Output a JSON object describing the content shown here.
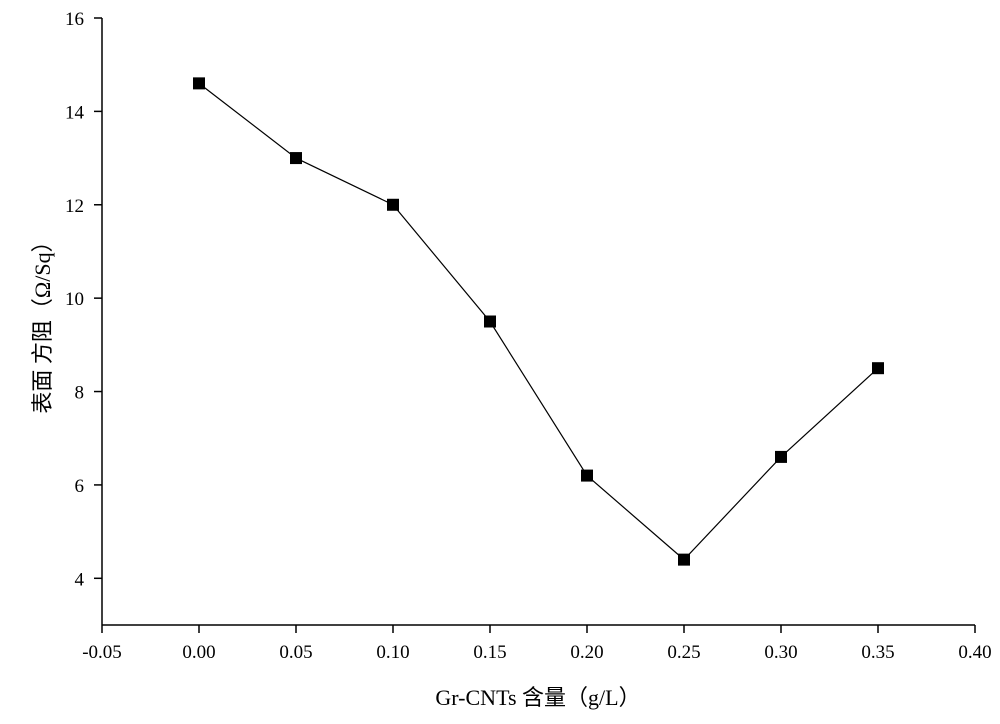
{
  "chart_data": {
    "type": "line",
    "title": "",
    "xlabel": "Gr-CNTs 含量（g/L）",
    "ylabel": "表面 方阻（Ω/Sq）",
    "xlim": [
      -0.05,
      0.4
    ],
    "ylim": [
      3,
      16
    ],
    "x_ticks": [
      "-0.05",
      "0.00",
      "0.05",
      "0.10",
      "0.15",
      "0.20",
      "0.25",
      "0.30",
      "0.35",
      "0.40"
    ],
    "y_ticks": [
      "4",
      "6",
      "8",
      "10",
      "12",
      "14",
      "16"
    ],
    "grid": false,
    "marker": "square",
    "series": [
      {
        "x": [
          0.0,
          0.05,
          0.1,
          0.15,
          0.2,
          0.25,
          0.3,
          0.35
        ],
        "y": [
          14.6,
          13.0,
          12.0,
          9.5,
          6.2,
          4.4,
          6.6,
          8.5
        ]
      }
    ]
  }
}
